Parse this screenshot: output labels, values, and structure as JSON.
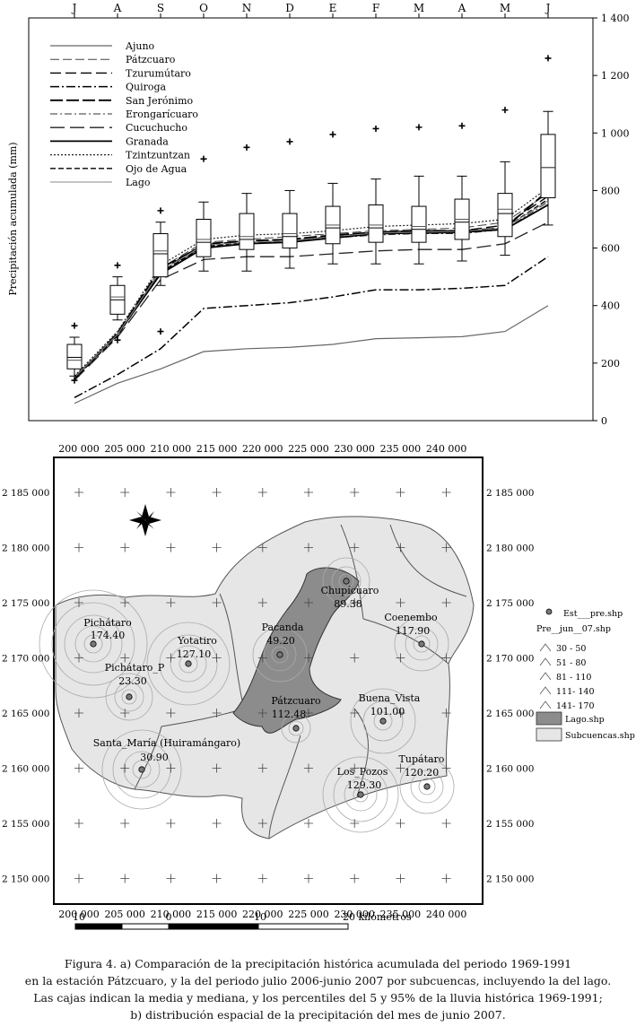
{
  "chart_data": [
    {
      "type": "line",
      "title": "",
      "xlabel": "",
      "ylabel": "Precipitación acumulada (mm)",
      "ylim": [
        0,
        1400
      ],
      "yticks": [
        "0",
        "200",
        "400",
        "600",
        "800",
        "1 000",
        "1 200",
        "1 400"
      ],
      "yticks_values": [
        0,
        200,
        400,
        600,
        800,
        1000,
        1200,
        1400
      ],
      "categories": [
        "J",
        "A",
        "S",
        "O",
        "N",
        "D",
        "E",
        "F",
        "M",
        "A",
        "M",
        "J"
      ],
      "legend_position": "top-left",
      "series": [
        {
          "name": "Ajuno",
          "style": "thin-solid",
          "values": [
            60,
            130,
            180,
            240,
            250,
            255,
            265,
            285,
            288,
            292,
            310,
            400
          ]
        },
        {
          "name": "Pátzcuaro",
          "style": "dash-light",
          "values": [
            150,
            300,
            530,
            620,
            630,
            640,
            650,
            660,
            665,
            670,
            690,
            790
          ]
        },
        {
          "name": "Tzurumútaro",
          "style": "dash-long",
          "values": [
            145,
            300,
            520,
            615,
            625,
            630,
            640,
            655,
            660,
            660,
            680,
            780
          ]
        },
        {
          "name": "Quiroga",
          "style": "dash-dot",
          "values": [
            80,
            160,
            250,
            390,
            400,
            410,
            430,
            455,
            455,
            460,
            470,
            570
          ]
        },
        {
          "name": "San Jerónimo",
          "style": "dash-long-thick",
          "values": [
            145,
            305,
            530,
            610,
            625,
            630,
            645,
            655,
            660,
            660,
            670,
            800
          ]
        },
        {
          "name": "Erongarícuaro",
          "style": "dash-dot-thin",
          "values": [
            145,
            300,
            520,
            605,
            615,
            625,
            635,
            645,
            650,
            650,
            665,
            760
          ]
        },
        {
          "name": "Cucuchucho",
          "style": "dash-wide",
          "values": [
            140,
            290,
            490,
            560,
            570,
            570,
            580,
            590,
            595,
            595,
            615,
            690
          ]
        },
        {
          "name": "Granada",
          "style": "solid-thick",
          "values": [
            150,
            300,
            510,
            600,
            615,
            620,
            635,
            650,
            652,
            655,
            665,
            750
          ]
        },
        {
          "name": "Tzintzuntzan",
          "style": "dotted",
          "values": [
            155,
            310,
            540,
            630,
            645,
            650,
            660,
            675,
            680,
            685,
            700,
            810
          ]
        },
        {
          "name": "Ojo de Agua",
          "style": "dash-short",
          "values": [
            145,
            295,
            515,
            605,
            620,
            625,
            640,
            650,
            655,
            655,
            670,
            770
          ]
        },
        {
          "name": "Lago",
          "style": "thin-gray",
          "values": [
            150,
            300,
            520,
            610,
            620,
            625,
            640,
            652,
            655,
            658,
            670,
            765
          ]
        }
      ],
      "boxes": [
        {
          "whisker_low": 155,
          "q1": 180,
          "median": 220,
          "mean": 210,
          "q3": 265,
          "whisker_high": 290,
          "outliers": [
            330,
            140
          ]
        },
        {
          "whisker_low": 350,
          "q1": 370,
          "median": 420,
          "mean": 430,
          "q3": 470,
          "whisker_high": 500,
          "outliers": [
            540,
            280
          ]
        },
        {
          "whisker_low": 470,
          "q1": 500,
          "median": 580,
          "mean": 590,
          "q3": 650,
          "whisker_high": 690,
          "outliers": [
            730,
            310
          ]
        },
        {
          "whisker_low": 520,
          "q1": 570,
          "median": 620,
          "mean": 630,
          "q3": 700,
          "whisker_high": 760,
          "outliers": [
            910
          ]
        },
        {
          "whisker_low": 520,
          "q1": 595,
          "median": 630,
          "mean": 640,
          "q3": 720,
          "whisker_high": 790,
          "outliers": [
            950
          ]
        },
        {
          "whisker_low": 530,
          "q1": 600,
          "median": 640,
          "mean": 650,
          "q3": 720,
          "whisker_high": 800,
          "outliers": [
            970
          ]
        },
        {
          "whisker_low": 545,
          "q1": 615,
          "median": 670,
          "mean": 680,
          "q3": 745,
          "whisker_high": 825,
          "outliers": [
            995
          ]
        },
        {
          "whisker_low": 545,
          "q1": 620,
          "median": 670,
          "mean": 680,
          "q3": 750,
          "whisker_high": 840,
          "outliers": [
            1015
          ]
        },
        {
          "whisker_low": 545,
          "q1": 620,
          "median": 665,
          "mean": 675,
          "q3": 745,
          "whisker_high": 850,
          "outliers": [
            1020
          ]
        },
        {
          "whisker_low": 555,
          "q1": 630,
          "median": 690,
          "mean": 700,
          "q3": 770,
          "whisker_high": 850,
          "outliers": [
            1025
          ]
        },
        {
          "whisker_low": 575,
          "q1": 640,
          "median": 720,
          "mean": 735,
          "q3": 790,
          "whisker_high": 900,
          "outliers": [
            1080
          ]
        },
        {
          "whisker_low": 680,
          "q1": 775,
          "median": 880,
          "mean": 880,
          "q3": 995,
          "whisker_high": 1075,
          "outliers": [
            1260
          ]
        }
      ]
    },
    {
      "type": "map",
      "title": "",
      "x_ticks": [
        "200 000",
        "205 000",
        "210 000",
        "215 000",
        "220 000",
        "225 000",
        "230 000",
        "235 000",
        "240 000"
      ],
      "x_ticks_bottom": [
        "200 000",
        "205 000",
        "210 000",
        "215 000",
        "220 000",
        "225 000",
        "230 000",
        "235 000",
        "240 000"
      ],
      "y_ticks": [
        "2 185 000",
        "2 180 000",
        "2 175 000",
        "2 170 000",
        "2 165 000",
        "2 160 000",
        "2 155 000",
        "2 150 000"
      ],
      "stations": [
        {
          "name": "Pichátaro",
          "value": "174.40"
        },
        {
          "name": "Yotatiro",
          "value": "127.10"
        },
        {
          "name": "Pichátaro_P",
          "value": "23.30"
        },
        {
          "name": "Santa_María (Huiramángaro)",
          "value": "30.90"
        },
        {
          "name": "Pacanda",
          "value": "49.20"
        },
        {
          "name": "Pátzcuaro",
          "value": "112.48"
        },
        {
          "name": "Chupícuaro",
          "value": "89.38"
        },
        {
          "name": "Coenembo",
          "value": "117.90"
        },
        {
          "name": "Buena_Vista",
          "value": "101.00"
        },
        {
          "name": "Los_Pozos",
          "value": "129.30"
        },
        {
          "name": "Tupátaro",
          "value": "120.20"
        }
      ],
      "legend": {
        "stations": "Est___pre.shp",
        "classes_title": "Pre__jun__07.shp",
        "classes": [
          "30 - 50",
          "51 - 80",
          "81 - 110",
          "111- 140",
          "141- 170"
        ],
        "lake": "Lago.shp",
        "subbasins": "Subcuencas.shp"
      },
      "scale_bar": {
        "labels": [
          "10",
          "0",
          "10",
          "20 kilómetros"
        ]
      },
      "colors": {
        "lake": "#8c8c8c",
        "subbasin": "#e6e6e6",
        "ring": "#aaaaaa"
      }
    }
  ],
  "caption": {
    "lines": [
      "Figura 4. a) Comparación de la precipitación histórica acumulada del periodo 1969-1991",
      "en la estación Pátzcuaro, y la del periodo julio 2006-junio 2007 por subcuencas, incluyendo la del lago.",
      "Las cajas indican la media y mediana, y los percentiles del 5 y 95% de la lluvia histórica 1969-1991;",
      "b) distribución espacial de la precipitación del mes de junio 2007."
    ]
  }
}
